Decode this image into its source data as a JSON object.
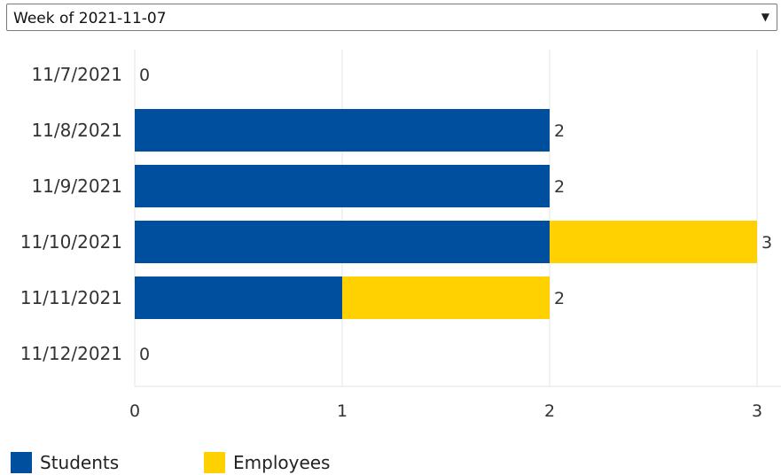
{
  "week_selector": {
    "value": "Week of 2021-11-07",
    "caret_icon": "caret-down-icon"
  },
  "chart_data": {
    "type": "bar",
    "orientation": "horizontal",
    "stacked": true,
    "categories": [
      "11/7/2021",
      "11/8/2021",
      "11/9/2021",
      "11/10/2021",
      "11/11/2021",
      "11/12/2021"
    ],
    "series": [
      {
        "name": "Students",
        "color": "#004f9f",
        "values": [
          0,
          2,
          2,
          2,
          1,
          0
        ]
      },
      {
        "name": "Employees",
        "color": "#ffd100",
        "values": [
          0,
          0,
          0,
          1,
          1,
          0
        ]
      }
    ],
    "totals": [
      0,
      2,
      2,
      3,
      2,
      0
    ],
    "x_ticks": [
      0,
      1,
      2,
      3
    ],
    "xlim": [
      0,
      3
    ],
    "grid": true,
    "legend_position": "bottom-left"
  }
}
